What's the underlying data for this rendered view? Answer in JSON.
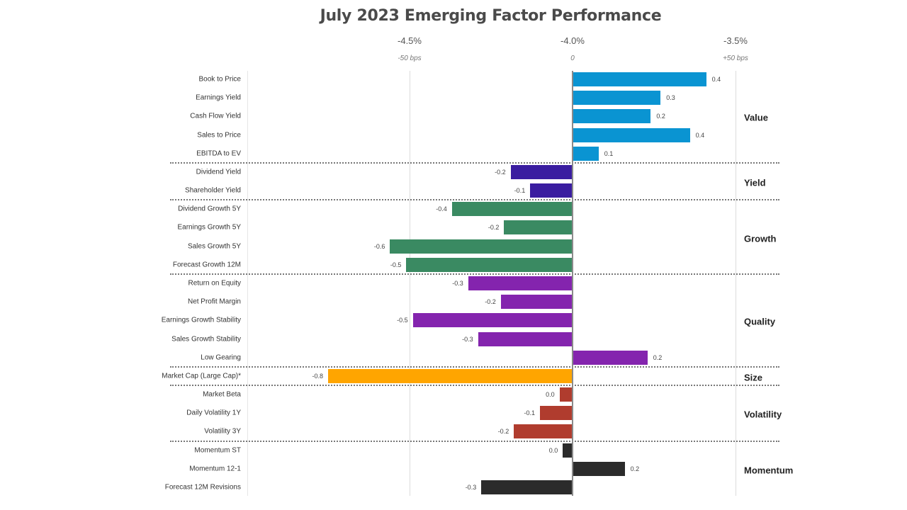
{
  "chart_data": {
    "type": "bar",
    "orientation": "horizontal",
    "title": "July 2023 Emerging Factor Performance",
    "xlabel": "",
    "ylabel": "",
    "top_axis_ticks": [
      "-4.5%",
      "-4.0%",
      "-3.5%"
    ],
    "top_axis_subticks": [
      "-50 bps",
      "0",
      "+50 bps"
    ],
    "xlim": [
      -0.5,
      0.5
    ],
    "grid": true,
    "legend": "none",
    "groups": [
      {
        "name": "Value",
        "color": "#0A94D2",
        "factors": [
          "Book to Price",
          "Earnings Yield",
          "Cash Flow Yield",
          "Sales to Price",
          "EBITDA to EV"
        ]
      },
      {
        "name": "Yield",
        "color": "#3A1DA0",
        "factors": [
          "Dividend Yield",
          "Shareholder Yield"
        ]
      },
      {
        "name": "Growth",
        "color": "#3A8A62",
        "factors": [
          "Dividend Growth 5Y",
          "Earnings Growth 5Y",
          "Sales Growth 5Y",
          "Forecast Growth 12M"
        ]
      },
      {
        "name": "Quality",
        "color": "#8424AE",
        "factors": [
          "Return on Equity",
          "Net Profit Margin",
          "Earnings Growth Stability",
          "Sales Growth Stability",
          "Low Gearing"
        ]
      },
      {
        "name": "Size",
        "color": "#FFA500",
        "factors": [
          "Market Cap (Large Cap)*"
        ]
      },
      {
        "name": "Volatility",
        "color": "#B03C2E",
        "factors": [
          "Market Beta",
          "Daily Volatility 1Y",
          "Volatility 3Y"
        ]
      },
      {
        "name": "Momentum",
        "color": "#2B2B2B",
        "factors": [
          "Momentum ST",
          "Momentum 12-1",
          "Forecast 12M Revisions"
        ]
      }
    ],
    "categories": [
      "Book to Price",
      "Earnings Yield",
      "Cash Flow Yield",
      "Sales to Price",
      "EBITDA to EV",
      "Dividend Yield",
      "Shareholder Yield",
      "Dividend Growth 5Y",
      "Earnings Growth 5Y",
      "Sales Growth 5Y",
      "Forecast Growth 12M",
      "Return on Equity",
      "Net Profit Margin",
      "Earnings Growth Stability",
      "Sales Growth Stability",
      "Low Gearing",
      "Market Cap (Large Cap)*",
      "Market Beta",
      "Daily Volatility 1Y",
      "Volatility 3Y",
      "Momentum ST",
      "Momentum 12-1",
      "Forecast 12M Revisions"
    ],
    "values": [
      0.4,
      0.3,
      0.2,
      0.4,
      0.1,
      -0.2,
      -0.1,
      -0.4,
      -0.2,
      -0.6,
      -0.5,
      -0.3,
      -0.2,
      -0.5,
      -0.3,
      0.2,
      -0.8,
      0.0,
      -0.1,
      -0.2,
      0.0,
      0.2,
      -0.3
    ],
    "value_labels": [
      "0.4",
      "0.3",
      "0.2",
      "0.4",
      "0.1",
      "-0.2",
      "-0.1",
      "-0.4",
      "-0.2",
      "-0.6",
      "-0.5",
      "-0.3",
      "-0.2",
      "-0.5",
      "-0.3",
      "0.2",
      "-0.8",
      "0.0",
      "-0.1",
      "-0.2",
      "0.0",
      "0.2",
      "-0.3"
    ],
    "estimated_precise_values": [
      0.41,
      0.27,
      0.24,
      0.36,
      0.08,
      -0.19,
      -0.13,
      -0.37,
      -0.21,
      -0.56,
      -0.51,
      -0.32,
      -0.22,
      -0.49,
      -0.29,
      0.23,
      -0.75,
      -0.04,
      -0.1,
      -0.18,
      -0.03,
      0.16,
      -0.28
    ],
    "units_note": "bars in percentage points relative to -4.0% (bar scale ±0.5 = ±50 bps)"
  }
}
